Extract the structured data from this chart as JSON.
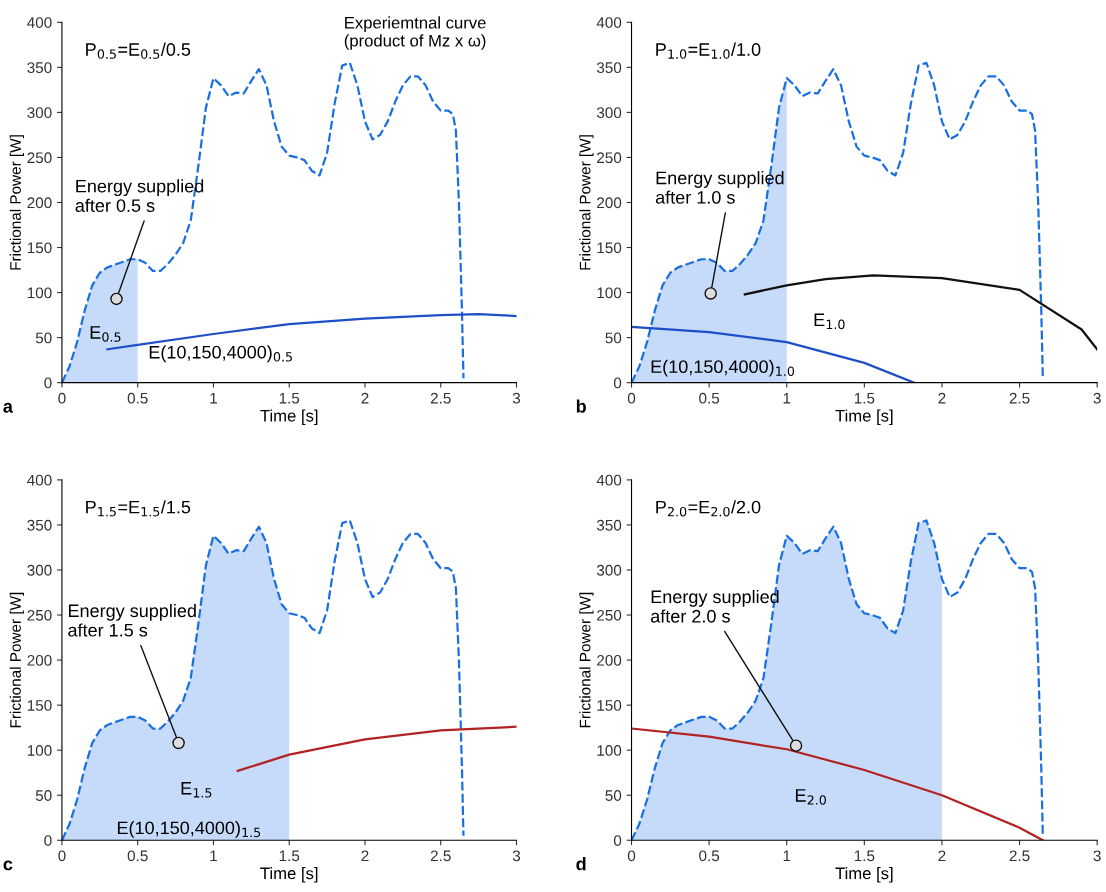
{
  "chart_data": [
    {
      "type": "line",
      "xlabel": "Time [s]",
      "ylabel": "Frictional Power [W]",
      "xlim": [
        0,
        3
      ],
      "ylim": [
        0,
        400
      ],
      "xticks": [
        0,
        0.5,
        1,
        1.5,
        2,
        2.5,
        3
      ],
      "yticks": [
        0,
        50,
        100,
        150,
        200,
        250,
        300,
        350,
        400
      ],
      "grid": false,
      "series": [
        {
          "type": "area",
          "color": "#c6dbf9",
          "x": [
            0,
            0.05,
            0.1,
            0.15,
            0.2,
            0.25,
            0.3,
            0.4,
            0.45,
            0.5
          ],
          "values": [
            0,
            18,
            45,
            80,
            108,
            122,
            128,
            134,
            137,
            137
          ]
        },
        {
          "type": "line",
          "line_style": "dashed",
          "color": "#1a6fe0",
          "x": [
            0,
            0.05,
            0.1,
            0.15,
            0.2,
            0.25,
            0.3,
            0.4,
            0.45,
            0.5,
            0.55,
            0.6,
            0.65,
            0.7,
            0.75,
            0.8,
            0.85,
            0.9,
            0.95,
            1.0,
            1.05,
            1.1,
            1.15,
            1.2,
            1.25,
            1.3,
            1.35,
            1.4,
            1.45,
            1.5,
            1.55,
            1.6,
            1.65,
            1.7,
            1.75,
            1.8,
            1.85,
            1.9,
            1.95,
            2.0,
            2.05,
            2.1,
            2.15,
            2.2,
            2.25,
            2.3,
            2.35,
            2.4,
            2.45,
            2.5,
            2.55,
            2.58,
            2.6,
            2.62,
            2.64,
            2.65
          ],
          "values": [
            0,
            18,
            45,
            80,
            108,
            122,
            128,
            134,
            137,
            137,
            133,
            124,
            124,
            132,
            142,
            155,
            180,
            240,
            305,
            338,
            330,
            318,
            322,
            321,
            335,
            348,
            330,
            290,
            262,
            252,
            250,
            247,
            235,
            230,
            255,
            310,
            352,
            355,
            330,
            290,
            270,
            275,
            290,
            312,
            330,
            340,
            340,
            330,
            312,
            302,
            302,
            298,
            280,
            200,
            80,
            5
          ]
        },
        {
          "type": "line",
          "line_style": "solid",
          "color": "#1f4fc8",
          "x": [
            0.3,
            0.5,
            1.0,
            1.5,
            2.0,
            2.5,
            2.75,
            3.0
          ],
          "values": [
            37,
            42,
            54,
            65,
            71,
            75,
            76,
            74
          ]
        }
      ],
      "annotations": [
        "P$_{0.5}$=E$_{0.5}$/0.5",
        "Experiemtnal curve\n(product of Mz x ω)",
        "E$_{0.5}$",
        "E(10,150,4000)$_{0.5}$",
        {
          "text": "Energy supplied\nafter 0.5 s",
          "x": 0.36,
          "y": 93
        },
        "a"
      ]
    },
    {
      "type": "line",
      "xlabel": "Time [s]",
      "ylabel": "Frictional Power [W]",
      "xlim": [
        0,
        3
      ],
      "ylim": [
        0,
        400
      ],
      "xticks": [
        0,
        0.5,
        1,
        1.5,
        2,
        2.5,
        3
      ],
      "yticks": [
        0,
        50,
        100,
        150,
        200,
        250,
        300,
        350,
        400
      ],
      "grid": false,
      "series": [
        {
          "type": "area",
          "color": "#c6dbf9",
          "x": [
            0,
            0.05,
            0.1,
            0.15,
            0.2,
            0.25,
            0.3,
            0.4,
            0.45,
            0.5,
            0.55,
            0.6,
            0.65,
            0.7,
            0.75,
            0.8,
            0.85,
            0.9,
            0.95,
            1.0
          ],
          "values": [
            0,
            18,
            45,
            80,
            108,
            122,
            128,
            134,
            137,
            137,
            133,
            124,
            124,
            132,
            142,
            155,
            180,
            240,
            305,
            338
          ]
        },
        {
          "type": "line",
          "line_style": "dashed",
          "color": "#1a6fe0",
          "x": [
            0,
            0.05,
            0.1,
            0.15,
            0.2,
            0.25,
            0.3,
            0.4,
            0.45,
            0.5,
            0.55,
            0.6,
            0.65,
            0.7,
            0.75,
            0.8,
            0.85,
            0.9,
            0.95,
            1.0,
            1.05,
            1.1,
            1.15,
            1.2,
            1.25,
            1.3,
            1.35,
            1.4,
            1.45,
            1.5,
            1.55,
            1.6,
            1.65,
            1.7,
            1.75,
            1.8,
            1.85,
            1.9,
            1.95,
            2.0,
            2.05,
            2.1,
            2.15,
            2.2,
            2.25,
            2.3,
            2.35,
            2.4,
            2.45,
            2.5,
            2.55,
            2.58,
            2.6,
            2.62,
            2.64,
            2.65
          ],
          "values": [
            0,
            18,
            45,
            80,
            108,
            122,
            128,
            134,
            137,
            137,
            133,
            124,
            124,
            132,
            142,
            155,
            180,
            240,
            305,
            338,
            330,
            318,
            322,
            321,
            335,
            348,
            330,
            290,
            262,
            252,
            250,
            247,
            235,
            230,
            255,
            310,
            352,
            355,
            330,
            290,
            270,
            275,
            290,
            312,
            330,
            340,
            340,
            330,
            312,
            302,
            302,
            298,
            280,
            200,
            80,
            5
          ]
        },
        {
          "type": "line",
          "line_style": "solid",
          "color": "#1f4fc8",
          "x": [
            0,
            0.5,
            1.0,
            1.5,
            1.82
          ],
          "values": [
            62,
            56,
            45,
            22,
            0
          ]
        },
        {
          "type": "line",
          "line_style": "solid",
          "color": "#111111",
          "x": [
            0.73,
            1.0,
            1.25,
            1.56,
            2.0,
            2.5,
            2.9,
            3.0
          ],
          "values": [
            98,
            108,
            115,
            119,
            116,
            103,
            59,
            37
          ]
        }
      ],
      "annotations": [
        "P$_{1.0}$=E$_{1.0}$/1.0",
        "E$_{1.0}$",
        "E(10,150,4000)$_{1.0}$",
        {
          "text": "Energy supplied\nafter 1.0 s",
          "x": 0.51,
          "y": 99
        },
        "b"
      ]
    },
    {
      "type": "line",
      "xlabel": "Time [s]",
      "ylabel": "Frictional Power [W]",
      "xlim": [
        0,
        3
      ],
      "ylim": [
        0,
        400
      ],
      "xticks": [
        0,
        0.5,
        1,
        1.5,
        2,
        2.5,
        3
      ],
      "yticks": [
        0,
        50,
        100,
        150,
        200,
        250,
        300,
        350,
        400
      ],
      "grid": false,
      "series": [
        {
          "type": "area",
          "color": "#c6dbf9",
          "x": [
            0,
            0.05,
            0.1,
            0.15,
            0.2,
            0.25,
            0.3,
            0.4,
            0.45,
            0.5,
            0.55,
            0.6,
            0.65,
            0.7,
            0.75,
            0.8,
            0.85,
            0.9,
            0.95,
            1.0,
            1.05,
            1.1,
            1.15,
            1.2,
            1.25,
            1.3,
            1.35,
            1.4,
            1.45,
            1.5
          ],
          "values": [
            0,
            18,
            45,
            80,
            108,
            122,
            128,
            134,
            137,
            137,
            133,
            124,
            124,
            132,
            142,
            155,
            180,
            240,
            305,
            338,
            330,
            318,
            322,
            321,
            335,
            348,
            330,
            290,
            262,
            252
          ]
        },
        {
          "type": "line",
          "line_style": "dashed",
          "color": "#1a6fe0",
          "x": [
            0,
            0.05,
            0.1,
            0.15,
            0.2,
            0.25,
            0.3,
            0.4,
            0.45,
            0.5,
            0.55,
            0.6,
            0.65,
            0.7,
            0.75,
            0.8,
            0.85,
            0.9,
            0.95,
            1.0,
            1.05,
            1.1,
            1.15,
            1.2,
            1.25,
            1.3,
            1.35,
            1.4,
            1.45,
            1.5,
            1.55,
            1.6,
            1.65,
            1.7,
            1.75,
            1.8,
            1.85,
            1.9,
            1.95,
            2.0,
            2.05,
            2.1,
            2.15,
            2.2,
            2.25,
            2.3,
            2.35,
            2.4,
            2.45,
            2.5,
            2.55,
            2.58,
            2.6,
            2.62,
            2.64,
            2.65
          ],
          "values": [
            0,
            18,
            45,
            80,
            108,
            122,
            128,
            134,
            137,
            137,
            133,
            124,
            124,
            132,
            142,
            155,
            180,
            240,
            305,
            338,
            330,
            318,
            322,
            321,
            335,
            348,
            330,
            290,
            262,
            252,
            250,
            247,
            235,
            230,
            255,
            310,
            352,
            355,
            330,
            290,
            270,
            275,
            290,
            312,
            330,
            340,
            340,
            330,
            312,
            302,
            302,
            298,
            280,
            200,
            80,
            5
          ]
        },
        {
          "type": "line",
          "line_style": "solid",
          "color": "#b22222",
          "x": [
            1.16,
            1.5,
            2.0,
            2.5,
            3.0
          ],
          "values": [
            77,
            95,
            112,
            122,
            126
          ]
        }
      ],
      "annotations": [
        "P$_{1.5}$=E$_{1.5}$/1.5",
        "E$_{1.5}$",
        "E(10,150,4000)$_{1.5}$",
        {
          "text": "Energy supplied\nafter 1.5 s",
          "x": 0.77,
          "y": 108
        },
        "c"
      ]
    },
    {
      "type": "line",
      "xlabel": "Time [s]",
      "ylabel": "Frictional Power [W]",
      "xlim": [
        0,
        3
      ],
      "ylim": [
        0,
        400
      ],
      "xticks": [
        0,
        0.5,
        1,
        1.5,
        2,
        2.5,
        3
      ],
      "yticks": [
        0,
        50,
        100,
        150,
        200,
        250,
        300,
        350,
        400
      ],
      "grid": false,
      "series": [
        {
          "type": "area",
          "color": "#c6dbf9",
          "x": [
            0,
            0.05,
            0.1,
            0.15,
            0.2,
            0.25,
            0.3,
            0.4,
            0.45,
            0.5,
            0.55,
            0.6,
            0.65,
            0.7,
            0.75,
            0.8,
            0.85,
            0.9,
            0.95,
            1.0,
            1.05,
            1.1,
            1.15,
            1.2,
            1.25,
            1.3,
            1.35,
            1.4,
            1.45,
            1.5,
            1.55,
            1.6,
            1.65,
            1.7,
            1.75,
            1.8,
            1.85,
            1.9,
            1.95,
            2.0
          ],
          "values": [
            0,
            18,
            45,
            80,
            108,
            122,
            128,
            134,
            137,
            137,
            133,
            124,
            124,
            132,
            142,
            155,
            180,
            240,
            305,
            338,
            330,
            318,
            322,
            321,
            335,
            348,
            330,
            290,
            262,
            252,
            250,
            247,
            235,
            230,
            255,
            310,
            352,
            355,
            330,
            290
          ]
        },
        {
          "type": "line",
          "line_style": "dashed",
          "color": "#1a6fe0",
          "x": [
            0,
            0.05,
            0.1,
            0.15,
            0.2,
            0.25,
            0.3,
            0.4,
            0.45,
            0.5,
            0.55,
            0.6,
            0.65,
            0.7,
            0.75,
            0.8,
            0.85,
            0.9,
            0.95,
            1.0,
            1.05,
            1.1,
            1.15,
            1.2,
            1.25,
            1.3,
            1.35,
            1.4,
            1.45,
            1.5,
            1.55,
            1.6,
            1.65,
            1.7,
            1.75,
            1.8,
            1.85,
            1.9,
            1.95,
            2.0,
            2.05,
            2.1,
            2.15,
            2.2,
            2.25,
            2.3,
            2.35,
            2.4,
            2.45,
            2.5,
            2.55,
            2.58,
            2.6,
            2.62,
            2.64,
            2.65
          ],
          "values": [
            0,
            18,
            45,
            80,
            108,
            122,
            128,
            134,
            137,
            137,
            133,
            124,
            124,
            132,
            142,
            155,
            180,
            240,
            305,
            338,
            330,
            318,
            322,
            321,
            335,
            348,
            330,
            290,
            262,
            252,
            250,
            247,
            235,
            230,
            255,
            310,
            352,
            355,
            330,
            290,
            270,
            275,
            290,
            312,
            330,
            340,
            340,
            330,
            312,
            302,
            302,
            298,
            280,
            200,
            80,
            5
          ]
        },
        {
          "type": "line",
          "line_style": "solid",
          "color": "#b22222",
          "x": [
            0,
            0.5,
            1.0,
            1.5,
            2.0,
            2.5,
            2.65
          ],
          "values": [
            124,
            115,
            101,
            78,
            50,
            14,
            0
          ]
        }
      ],
      "annotations": [
        "P$_{2.0}$=E$_{2.0}$/2.0",
        "E$_{2.0}$",
        {
          "text": "Energy supplied\nafter 2.0 s",
          "x": 1.06,
          "y": 105
        },
        "d"
      ]
    }
  ]
}
